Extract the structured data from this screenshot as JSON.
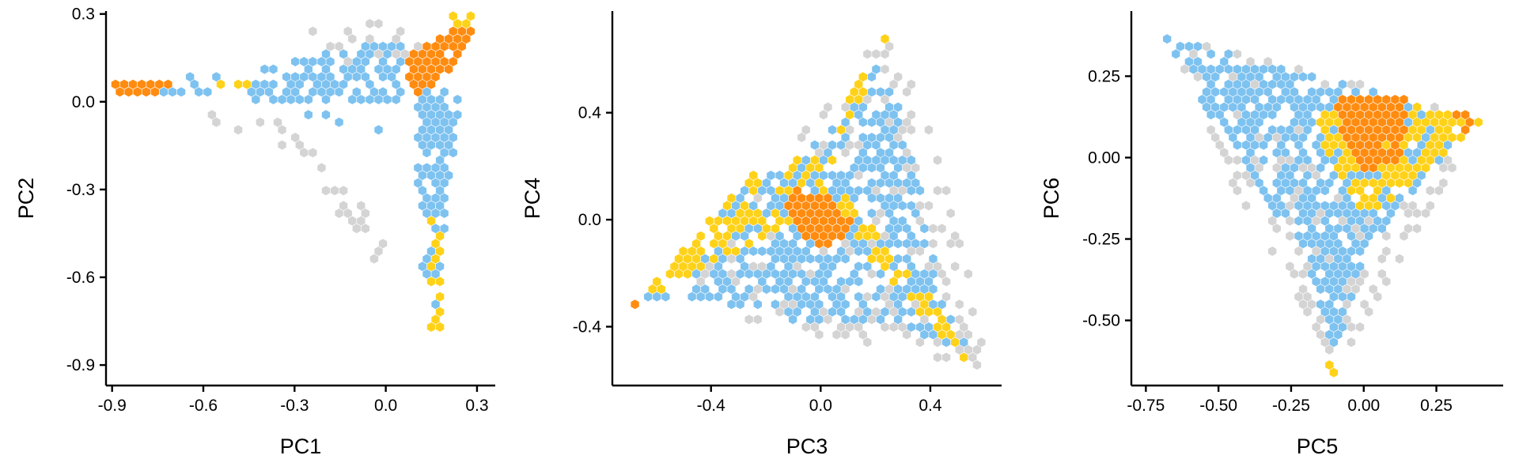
{
  "colors": {
    "grey": "#d4d4d4",
    "blue": "#7ec2f0",
    "yellow": "#ffd21a",
    "orange": "#ff8c10",
    "axis": "#000000",
    "background": "#ffffff"
  },
  "chart_data": [
    {
      "type": "scatter",
      "style": "hexbin",
      "xlabel": "PC1",
      "ylabel": "PC2",
      "xlim": [
        -0.92,
        0.36
      ],
      "ylim": [
        -0.97,
        0.31
      ],
      "xticks": [
        -0.9,
        -0.6,
        -0.3,
        0.0,
        0.3
      ],
      "xtick_labels": [
        "-0.9",
        "-0.6",
        "-0.3",
        "0.0",
        "0.3"
      ],
      "yticks": [
        -0.9,
        -0.6,
        -0.3,
        0.0,
        0.3
      ],
      "ytick_labels": [
        "-0.9",
        "-0.6",
        "-0.3",
        "0.0",
        "0.3"
      ],
      "grid": false,
      "legend": "none",
      "regions": [
        {
          "category": "grey",
          "shape": "polygon",
          "points": [
            [
              -0.62,
              -0.05
            ],
            [
              -0.3,
              -0.2
            ],
            [
              0.02,
              -0.62
            ],
            [
              0.1,
              -0.8
            ],
            [
              -0.05,
              -0.35
            ],
            [
              -0.4,
              0.0
            ]
          ],
          "density": 0.28
        },
        {
          "category": "grey",
          "shape": "polygon",
          "points": [
            [
              -0.3,
              0.25
            ],
            [
              0.08,
              0.28
            ],
            [
              0.12,
              0.16
            ],
            [
              -0.3,
              0.12
            ]
          ],
          "density": 0.25
        },
        {
          "category": "blue",
          "shape": "polygon",
          "points": [
            [
              -0.5,
              0.1
            ],
            [
              -0.02,
              0.2
            ],
            [
              0.05,
              0.22
            ],
            [
              0.05,
              0.0
            ],
            [
              -0.45,
              0.0
            ]
          ],
          "density": 0.7
        },
        {
          "category": "blue",
          "shape": "polygon",
          "points": [
            [
              0.1,
              0.05
            ],
            [
              0.25,
              0.05
            ],
            [
              0.2,
              -0.4
            ],
            [
              0.17,
              -0.75
            ],
            [
              0.12,
              -0.6
            ],
            [
              0.1,
              -0.2
            ]
          ],
          "density": 0.75
        },
        {
          "category": "blue",
          "shape": "polygon",
          "points": [
            [
              -0.8,
              0.08
            ],
            [
              -0.5,
              0.1
            ],
            [
              -0.5,
              0.03
            ],
            [
              -0.8,
              0.03
            ]
          ],
          "density": 0.45
        },
        {
          "category": "blue",
          "shape": "polygon",
          "points": [
            [
              -0.3,
              -0.02
            ],
            [
              0.05,
              -0.02
            ],
            [
              -0.05,
              -0.2
            ]
          ],
          "density": 0.12
        },
        {
          "category": "yellow",
          "shape": "polygon",
          "points": [
            [
              -0.55,
              0.1
            ],
            [
              -0.45,
              0.1
            ],
            [
              -0.45,
              0.04
            ],
            [
              -0.55,
              0.04
            ]
          ],
          "density": 0.6
        },
        {
          "category": "yellow",
          "shape": "polygon",
          "points": [
            [
              0.14,
              -0.4
            ],
            [
              0.18,
              -0.4
            ],
            [
              0.18,
              -0.82
            ],
            [
              0.14,
              -0.82
            ]
          ],
          "density": 0.55
        },
        {
          "category": "yellow",
          "shape": "polygon",
          "points": [
            [
              0.18,
              0.3
            ],
            [
              0.33,
              0.3
            ],
            [
              0.25,
              0.2
            ]
          ],
          "density": 0.6
        },
        {
          "category": "orange",
          "shape": "polygon",
          "points": [
            [
              0.05,
              0.15
            ],
            [
              0.25,
              0.27
            ],
            [
              0.3,
              0.24
            ],
            [
              0.22,
              0.12
            ],
            [
              0.1,
              0.0
            ]
          ],
          "density": 0.95
        },
        {
          "category": "orange",
          "shape": "polygon",
          "points": [
            [
              -0.9,
              0.07
            ],
            [
              -0.7,
              0.07
            ],
            [
              -0.7,
              0.03
            ],
            [
              -0.9,
              0.03
            ]
          ],
          "density": 0.9
        }
      ]
    },
    {
      "type": "scatter",
      "style": "hexbin",
      "xlabel": "PC3",
      "ylabel": "PC4",
      "xlim": [
        -0.76,
        0.66
      ],
      "ylim": [
        -0.62,
        0.78
      ],
      "xticks": [
        -0.4,
        0.0,
        0.4
      ],
      "xtick_labels": [
        "-0.4",
        "0.0",
        "0.4"
      ],
      "yticks": [
        -0.4,
        0.0,
        0.4
      ],
      "ytick_labels": [
        "-0.4",
        "0.0",
        "0.4"
      ],
      "grid": false,
      "legend": "none",
      "regions": [
        {
          "category": "grey",
          "shape": "polygon",
          "points": [
            [
              0.24,
              0.72
            ],
            [
              0.35,
              0.5
            ],
            [
              0.55,
              -0.2
            ],
            [
              0.6,
              -0.55
            ],
            [
              0.1,
              -0.45
            ],
            [
              -0.3,
              -0.38
            ],
            [
              -0.5,
              -0.2
            ],
            [
              -0.3,
              0.1
            ],
            [
              0.05,
              0.45
            ]
          ],
          "density": 0.32
        },
        {
          "category": "blue",
          "shape": "polygon",
          "points": [
            [
              0.2,
              0.6
            ],
            [
              0.3,
              0.4
            ],
            [
              0.45,
              -0.3
            ],
            [
              0.55,
              -0.5
            ],
            [
              0.3,
              -0.4
            ],
            [
              0.0,
              -0.4
            ],
            [
              -0.4,
              -0.3
            ],
            [
              -0.65,
              -0.3
            ],
            [
              -0.3,
              0.1
            ],
            [
              0.0,
              0.3
            ]
          ],
          "density": 0.55
        },
        {
          "category": "yellow",
          "shape": "polygon",
          "points": [
            [
              0.0,
              0.05
            ],
            [
              0.55,
              -0.55
            ],
            [
              0.45,
              -0.35
            ],
            [
              0.08,
              0.1
            ]
          ],
          "density": 0.7
        },
        {
          "category": "yellow",
          "shape": "polygon",
          "points": [
            [
              -0.25,
              0.18
            ],
            [
              0.0,
              0.05
            ],
            [
              -0.6,
              -0.28
            ],
            [
              -0.68,
              -0.32
            ]
          ],
          "density": 0.55
        },
        {
          "category": "yellow",
          "shape": "polygon",
          "points": [
            [
              0.18,
              0.68
            ],
            [
              0.24,
              0.68
            ],
            [
              0.1,
              0.3
            ],
            [
              0.03,
              0.25
            ]
          ],
          "density": 0.45
        },
        {
          "category": "yellow",
          "shape": "polygon",
          "points": [
            [
              -0.12,
              0.25
            ],
            [
              0.05,
              0.25
            ],
            [
              0.05,
              0.1
            ],
            [
              -0.12,
              0.1
            ]
          ],
          "density": 0.55
        },
        {
          "category": "orange",
          "shape": "polygon",
          "points": [
            [
              -0.1,
              0.12
            ],
            [
              0.05,
              0.08
            ],
            [
              0.12,
              -0.02
            ],
            [
              0.05,
              -0.12
            ],
            [
              -0.05,
              -0.08
            ],
            [
              -0.15,
              0.05
            ]
          ],
          "density": 0.95
        },
        {
          "category": "orange",
          "shape": "polygon",
          "points": [
            [
              -0.72,
              -0.34
            ],
            [
              -0.6,
              -0.26
            ],
            [
              -0.6,
              -0.3
            ],
            [
              -0.72,
              -0.36
            ]
          ],
          "density": 0.5
        }
      ]
    },
    {
      "type": "scatter",
      "style": "hexbin",
      "xlabel": "PC5",
      "ylabel": "PC6",
      "xlim": [
        -0.8,
        0.48
      ],
      "ylim": [
        -0.7,
        0.45
      ],
      "xticks": [
        -0.75,
        -0.5,
        -0.25,
        0.0,
        0.25
      ],
      "xtick_labels": [
        "-0.75",
        "-0.50",
        "-0.25",
        "0.00",
        "0.25"
      ],
      "yticks": [
        -0.5,
        -0.25,
        0.0,
        0.25
      ],
      "ytick_labels": [
        "-0.50",
        "-0.25",
        "0.00",
        "0.25"
      ],
      "grid": false,
      "legend": "none",
      "regions": [
        {
          "category": "grey",
          "shape": "polygon",
          "points": [
            [
              -0.74,
              0.4
            ],
            [
              0.43,
              0.12
            ],
            [
              -0.1,
              -0.66
            ]
          ],
          "density": 0.35
        },
        {
          "category": "blue",
          "shape": "polygon",
          "points": [
            [
              -0.7,
              0.38
            ],
            [
              0.38,
              0.12
            ],
            [
              0.0,
              -0.3
            ],
            [
              -0.1,
              -0.62
            ],
            [
              -0.2,
              -0.3
            ],
            [
              -0.4,
              -0.05
            ]
          ],
          "density": 0.62
        },
        {
          "category": "yellow",
          "shape": "polygon",
          "points": [
            [
              -0.18,
              0.12
            ],
            [
              0.0,
              0.2
            ],
            [
              0.42,
              0.12
            ],
            [
              0.2,
              -0.05
            ],
            [
              0.0,
              -0.2
            ],
            [
              -0.1,
              -0.05
            ]
          ],
          "density": 0.75
        },
        {
          "category": "yellow",
          "shape": "polygon",
          "points": [
            [
              -0.12,
              -0.6
            ],
            [
              -0.08,
              -0.6
            ],
            [
              -0.08,
              -0.68
            ],
            [
              -0.12,
              -0.68
            ]
          ],
          "density": 0.6
        },
        {
          "category": "orange",
          "shape": "polygon",
          "points": [
            [
              -0.1,
              0.2
            ],
            [
              0.15,
              0.18
            ],
            [
              0.13,
              0.0
            ],
            [
              0.0,
              -0.05
            ],
            [
              -0.08,
              0.05
            ]
          ],
          "density": 0.95
        },
        {
          "category": "orange",
          "shape": "polygon",
          "points": [
            [
              0.3,
              0.14
            ],
            [
              0.42,
              0.12
            ],
            [
              0.35,
              0.08
            ]
          ],
          "density": 0.6
        }
      ]
    }
  ]
}
